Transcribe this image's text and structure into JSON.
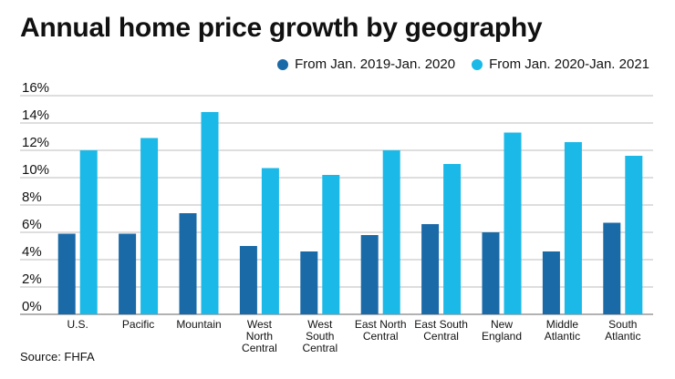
{
  "chart_data": {
    "type": "bar",
    "title": "Annual home price growth by geography",
    "categories": [
      [
        "U.S."
      ],
      [
        "Pacific"
      ],
      [
        "Mountain"
      ],
      [
        "West",
        "North",
        "Central"
      ],
      [
        "West",
        "South",
        "Central"
      ],
      [
        "East North",
        "Central"
      ],
      [
        "East South",
        "Central"
      ],
      [
        "New",
        "England"
      ],
      [
        "Middle",
        "Atlantic"
      ],
      [
        "South",
        "Atlantic"
      ]
    ],
    "series": [
      {
        "name": "From Jan. 2019-Jan. 2020",
        "color": "#1a6aa8",
        "values": [
          5.9,
          5.9,
          7.4,
          5.0,
          4.6,
          5.8,
          6.6,
          6.0,
          4.6,
          6.7
        ]
      },
      {
        "name": "From Jan. 2020-Jan. 2021",
        "color": "#1ab9e8",
        "values": [
          12.0,
          12.9,
          14.8,
          10.7,
          10.2,
          12.0,
          11.0,
          13.3,
          12.6,
          11.6
        ]
      }
    ],
    "ylim": [
      0,
      16
    ],
    "yticks": [
      "0%",
      "2%",
      "4%",
      "6%",
      "8%",
      "10%",
      "12%",
      "14%",
      "16%"
    ],
    "xlabel": "",
    "ylabel": "",
    "legend_position": "top-right",
    "grid": true
  },
  "source": "Source: FHFA"
}
